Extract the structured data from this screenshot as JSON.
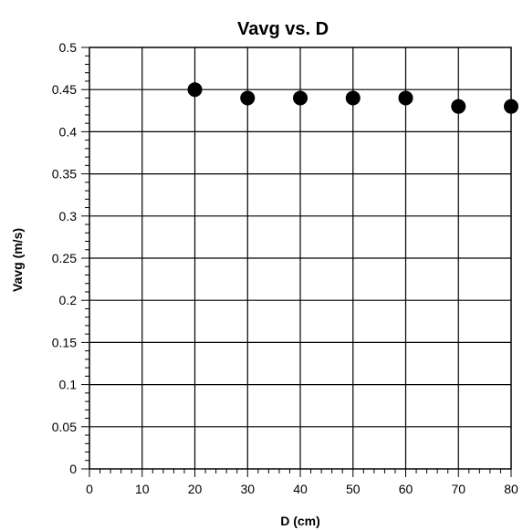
{
  "chart_data": {
    "type": "scatter",
    "title": "Vavg vs. D",
    "xlabel": "D (cm)",
    "ylabel": "Vavg (m/s)",
    "xlim": [
      0,
      80
    ],
    "ylim": [
      0,
      0.5
    ],
    "x_ticks": [
      "0",
      "10",
      "20",
      "30",
      "40",
      "50",
      "60",
      "70",
      "80"
    ],
    "y_ticks": [
      "0",
      "0.05",
      "0.1",
      "0.15",
      "0.2",
      "0.25",
      "0.3",
      "0.35",
      "0.4",
      "0.45",
      "0.5"
    ],
    "grid": true,
    "series": [
      {
        "x": [
          20,
          30,
          40,
          50,
          60,
          70,
          80
        ],
        "y": [
          0.45,
          0.44,
          0.44,
          0.44,
          0.44,
          0.43,
          0.43
        ]
      }
    ],
    "colors": {
      "axis": "#000000",
      "grid": "#000000",
      "marker": "#000000",
      "background": "#ffffff"
    }
  }
}
